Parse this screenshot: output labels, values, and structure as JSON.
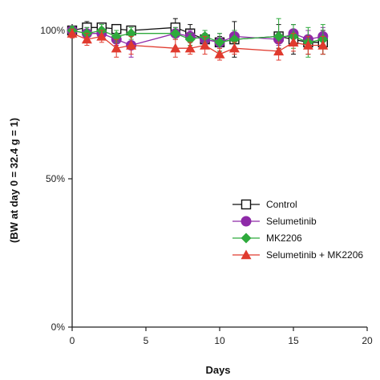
{
  "chart_data": {
    "type": "line",
    "xlabel": "Days",
    "ylabel": "(BW at day 0 = 32.4 g = 1)",
    "xlim": [
      0,
      20
    ],
    "ylim": [
      0,
      100
    ],
    "x_ticks": [
      "0",
      "5",
      "10",
      "15",
      "20"
    ],
    "y_ticks": [
      "0%",
      "50%",
      "100%"
    ],
    "grid": false,
    "legend_position": "right",
    "series": [
      {
        "name": "Control",
        "color": "#111111",
        "marker": "open-square",
        "x": [
          0,
          1,
          2,
          3,
          4,
          7,
          8,
          9,
          10,
          11,
          14,
          15,
          16,
          17
        ],
        "y": [
          100,
          101,
          101,
          100.5,
          100,
          101,
          99,
          97,
          96,
          97,
          98,
          97,
          96,
          96
        ],
        "err": [
          1.5,
          2,
          1.5,
          1.5,
          1.5,
          3,
          3,
          2,
          2,
          6,
          4,
          5,
          4,
          4
        ]
      },
      {
        "name": "Selumetinib",
        "color": "#8e2aa8",
        "marker": "circle",
        "x": [
          0,
          1,
          2,
          3,
          4,
          7,
          8,
          9,
          10,
          11,
          14,
          15,
          16,
          17
        ],
        "y": [
          100,
          99,
          99,
          97,
          95,
          99,
          98,
          97,
          96,
          98,
          97,
          99,
          97,
          98
        ],
        "err": [
          1.5,
          2,
          2,
          2,
          4,
          2,
          2,
          3,
          3,
          2,
          2,
          3,
          3,
          3
        ]
      },
      {
        "name": "MK2206",
        "color": "#2eaa3c",
        "marker": "diamond",
        "x": [
          0,
          1,
          2,
          3,
          4,
          7,
          8,
          9,
          10,
          11,
          14,
          15,
          16,
          17
        ],
        "y": [
          100,
          99,
          100,
          98,
          99,
          99,
          97,
          98,
          96,
          97,
          98,
          98,
          96,
          97
        ],
        "err": [
          1.5,
          2,
          2,
          2,
          2,
          2,
          2,
          2,
          3,
          3,
          6,
          4,
          5,
          5
        ]
      },
      {
        "name": "Selumetinib + MK2206",
        "color": "#e03a2e",
        "marker": "triangle",
        "x": [
          0,
          1,
          2,
          3,
          4,
          7,
          8,
          9,
          10,
          11,
          14,
          15,
          16,
          17
        ],
        "y": [
          99,
          97,
          98,
          94,
          95,
          94,
          94,
          95,
          92,
          94,
          93,
          96,
          95,
          95
        ],
        "err": [
          1.5,
          2,
          2,
          3,
          3,
          3,
          2,
          3,
          2,
          2,
          3,
          3,
          3,
          3
        ]
      }
    ]
  }
}
